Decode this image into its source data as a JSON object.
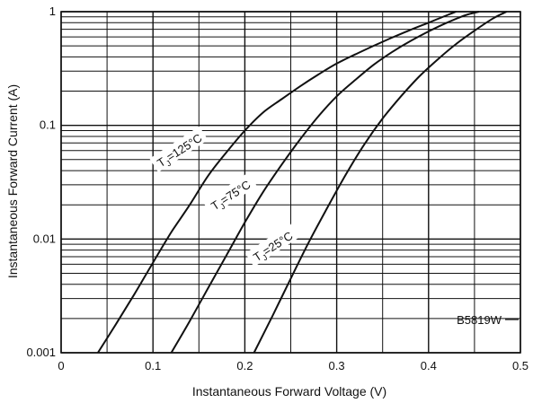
{
  "chart_data": {
    "type": "line",
    "title": "",
    "xlabel": "Instantaneous Forward Voltage (V)",
    "ylabel": "Instantaneous Forward Current (A)",
    "xlim": [
      0,
      0.5
    ],
    "ylim": [
      0.001,
      1
    ],
    "y_scale": "log",
    "grid": true,
    "x_ticks": [
      "0",
      "0.1",
      "0.2",
      "0.3",
      "0.4",
      "0.5"
    ],
    "y_ticks": [
      "0.001",
      "0.01",
      "0.1",
      "1"
    ],
    "annotation": "B5819W",
    "series": [
      {
        "name": "TJ=125°C",
        "label_main": "T",
        "label_sub": "J",
        "label_rest": "=125°C",
        "x": [
          0.04,
          0.06,
          0.08,
          0.1,
          0.12,
          0.14,
          0.16,
          0.18,
          0.2,
          0.22,
          0.24,
          0.26,
          0.28,
          0.3,
          0.32,
          0.34,
          0.36,
          0.38,
          0.4,
          0.42,
          0.43
        ],
        "y": [
          0.001,
          0.0018,
          0.0033,
          0.0062,
          0.0115,
          0.02,
          0.036,
          0.058,
          0.09,
          0.13,
          0.17,
          0.22,
          0.28,
          0.35,
          0.42,
          0.5,
          0.59,
          0.69,
          0.8,
          0.93,
          1.0
        ]
      },
      {
        "name": "TJ=75°C",
        "label_main": "T",
        "label_sub": "J",
        "label_rest": "=75°C",
        "x": [
          0.12,
          0.14,
          0.16,
          0.18,
          0.2,
          0.22,
          0.24,
          0.26,
          0.28,
          0.3,
          0.32,
          0.34,
          0.36,
          0.38,
          0.4,
          0.42,
          0.44,
          0.455
        ],
        "y": [
          0.001,
          0.0019,
          0.0037,
          0.0072,
          0.014,
          0.026,
          0.045,
          0.075,
          0.12,
          0.18,
          0.25,
          0.34,
          0.44,
          0.55,
          0.67,
          0.8,
          0.93,
          1.0
        ]
      },
      {
        "name": "TJ=25°C",
        "label_main": "T",
        "label_sub": "J",
        "label_rest": "=25°C",
        "x": [
          0.21,
          0.23,
          0.25,
          0.27,
          0.29,
          0.31,
          0.33,
          0.35,
          0.37,
          0.39,
          0.41,
          0.43,
          0.45,
          0.47,
          0.485
        ],
        "y": [
          0.001,
          0.0021,
          0.0045,
          0.0095,
          0.019,
          0.037,
          0.068,
          0.115,
          0.18,
          0.27,
          0.38,
          0.52,
          0.68,
          0.87,
          1.0
        ]
      }
    ]
  }
}
